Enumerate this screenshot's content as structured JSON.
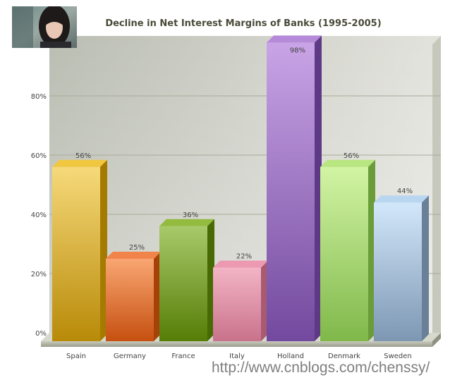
{
  "chart_data": {
    "type": "bar",
    "title": "Decline in Net Interest Margins of Banks (1995-2005)",
    "categories": [
      "Spain",
      "Germany",
      "France",
      "Italy",
      "Holland",
      "Denmark",
      "Sweden"
    ],
    "values": [
      56,
      25,
      36,
      22,
      98,
      56,
      44
    ],
    "value_labels": [
      "56%",
      "25%",
      "36%",
      "22%",
      "98%",
      "56%",
      "44%"
    ],
    "y_ticks": [
      0,
      20,
      40,
      60,
      80
    ],
    "y_tick_labels": [
      "0%",
      "20%",
      "40%",
      "60%",
      "80%"
    ],
    "ylim": [
      0,
      100
    ],
    "grid": true,
    "style": "3d-column",
    "bar_colors": [
      {
        "light": "#f6d97a",
        "dark": "#b88a08",
        "side": "#a57a00",
        "top": "#f1c740"
      },
      {
        "light": "#f9a672",
        "dark": "#c65010",
        "side": "#a64208",
        "top": "#f1844a"
      },
      {
        "light": "#a9c96a",
        "dark": "#557d06",
        "side": "#486a04",
        "top": "#93bb3f"
      },
      {
        "light": "#f3b4c6",
        "dark": "#c9728b",
        "side": "#a85a70",
        "top": "#ec9ab1"
      },
      {
        "light": "#c9a4e6",
        "dark": "#72499e",
        "side": "#5e3a86",
        "top": "#b58ad9"
      },
      {
        "light": "#d2f4a4",
        "dark": "#80b84a",
        "side": "#6a9c3a",
        "top": "#b8e680"
      },
      {
        "light": "#d2e7fa",
        "dark": "#7d97b3",
        "side": "#6a8099",
        "top": "#b9d6f0"
      }
    ]
  },
  "watermark": "http://www.cnblogs.com/chenssy/"
}
